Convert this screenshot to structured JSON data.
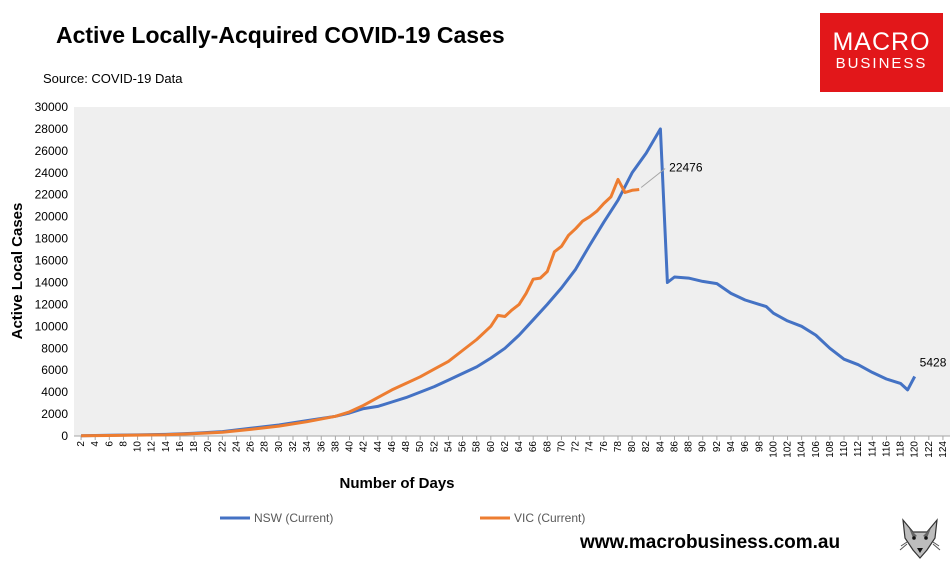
{
  "header": {
    "title": "Active Locally-Acquired COVID-19 Cases",
    "source": "Source: COVID-19 Data"
  },
  "logo": {
    "line1": "MACRO",
    "line2": "BUSINESS",
    "bg": "#e2171a"
  },
  "footer": {
    "website": "www.macrobusiness.com.au"
  },
  "chart_data": {
    "type": "line",
    "title": "Active Locally-Acquired COVID-19 Cases",
    "xlabel": "Number of Days",
    "ylabel": "Active Local Cases",
    "xlim": [
      1,
      125
    ],
    "ylim": [
      0,
      30000
    ],
    "y_ticks": [
      0,
      2000,
      4000,
      6000,
      8000,
      10000,
      12000,
      14000,
      16000,
      18000,
      20000,
      22000,
      24000,
      26000,
      28000,
      30000
    ],
    "x_ticks": [
      2,
      4,
      6,
      8,
      10,
      12,
      14,
      16,
      18,
      20,
      22,
      24,
      26,
      28,
      30,
      32,
      34,
      36,
      38,
      40,
      42,
      44,
      46,
      48,
      50,
      52,
      54,
      56,
      58,
      60,
      62,
      64,
      66,
      68,
      70,
      72,
      74,
      76,
      78,
      80,
      82,
      84,
      86,
      88,
      90,
      92,
      94,
      96,
      98,
      100,
      102,
      104,
      106,
      108,
      110,
      112,
      114,
      116,
      118,
      120,
      122,
      124
    ],
    "legend_position": "bottom",
    "grid": false,
    "series": [
      {
        "name": "NSW (Current)",
        "color": "#4472c4",
        "x": [
          2,
          6,
          10,
          14,
          18,
          22,
          26,
          30,
          34,
          38,
          40,
          42,
          44,
          46,
          48,
          50,
          52,
          54,
          56,
          58,
          60,
          62,
          64,
          66,
          68,
          70,
          72,
          74,
          76,
          78,
          80,
          82,
          84,
          85,
          86,
          88,
          90,
          92,
          94,
          96,
          98,
          99,
          100,
          102,
          104,
          106,
          108,
          110,
          112,
          114,
          116,
          118,
          119,
          120
        ],
        "values": [
          30,
          60,
          100,
          150,
          250,
          400,
          700,
          1000,
          1400,
          1800,
          2100,
          2500,
          2700,
          3100,
          3500,
          4000,
          4500,
          5100,
          5700,
          6300,
          7100,
          8000,
          9200,
          10600,
          12000,
          13500,
          15200,
          17400,
          19500,
          21500,
          24000,
          25800,
          28000,
          14000,
          14500,
          14400,
          14100,
          13900,
          13000,
          12400,
          12000,
          11800,
          11200,
          10500,
          10000,
          9200,
          8000,
          7000,
          6500,
          5800,
          5200,
          4800,
          4200,
          5428
        ],
        "end_label": "5428"
      },
      {
        "name": "VIC (Current)",
        "color": "#ed7d31",
        "x": [
          2,
          6,
          10,
          14,
          18,
          22,
          26,
          30,
          34,
          38,
          40,
          42,
          44,
          46,
          48,
          50,
          52,
          54,
          56,
          58,
          60,
          61,
          62,
          63,
          64,
          65,
          66,
          67,
          68,
          69,
          70,
          71,
          72,
          73,
          74,
          75,
          76,
          77,
          78,
          79,
          80,
          81
        ],
        "values": [
          30,
          50,
          80,
          120,
          220,
          350,
          600,
          900,
          1300,
          1800,
          2200,
          2800,
          3500,
          4200,
          4800,
          5400,
          6100,
          6800,
          7800,
          8800,
          10000,
          11000,
          10900,
          11500,
          12000,
          13000,
          14300,
          14400,
          15000,
          16800,
          17300,
          18300,
          18900,
          19600,
          20000,
          20500,
          21200,
          21800,
          23400,
          22200,
          22400,
          22476
        ],
        "end_label": "22476"
      }
    ]
  }
}
